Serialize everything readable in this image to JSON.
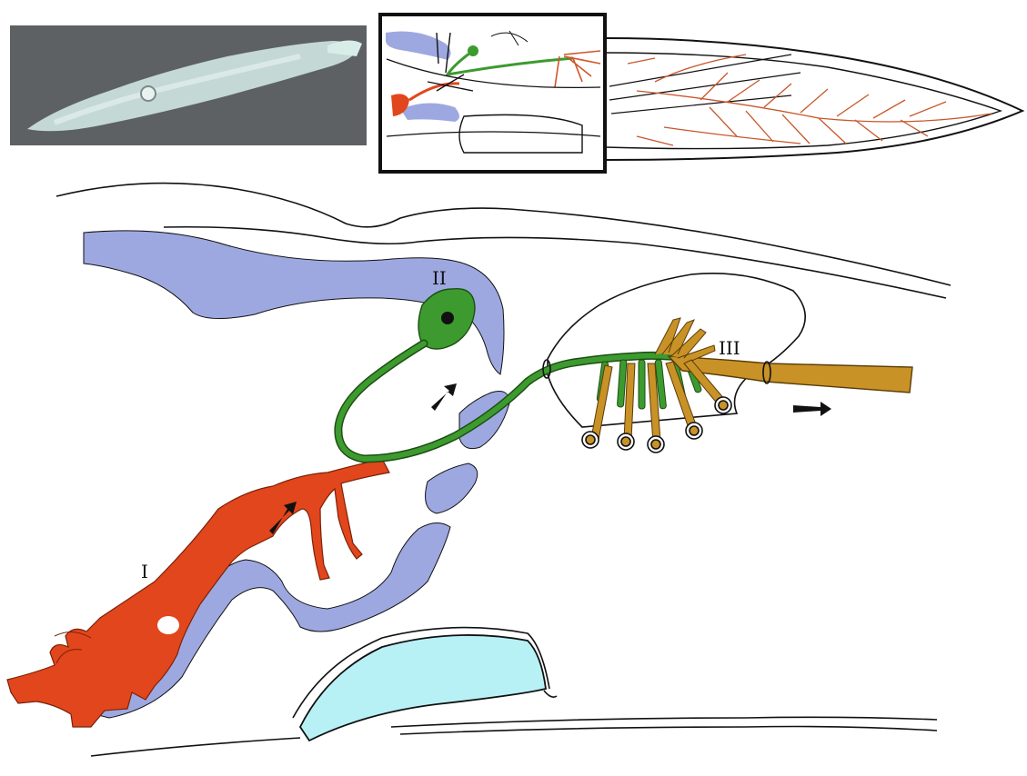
{
  "labels": {
    "neuron_1": "I",
    "neuron_2": "II",
    "neuron_3": "III"
  },
  "colors": {
    "background": "#ffffff",
    "photo_background": "#5d6163",
    "glia_lavender": "#9ea8e0",
    "neuron_1_red": "#e2461c",
    "neuron_2_green": "#3d9a2f",
    "neuron_3_orange": "#c89227",
    "cartilage_cyan": "#b8f1f5",
    "mantle_vessels": "#c8552a",
    "outline": "#111111"
  },
  "icons": {
    "photo": "squid-photo",
    "inset": "squid-nervous-system-diagram",
    "arrows": "signal-direction-arrow-icon"
  }
}
